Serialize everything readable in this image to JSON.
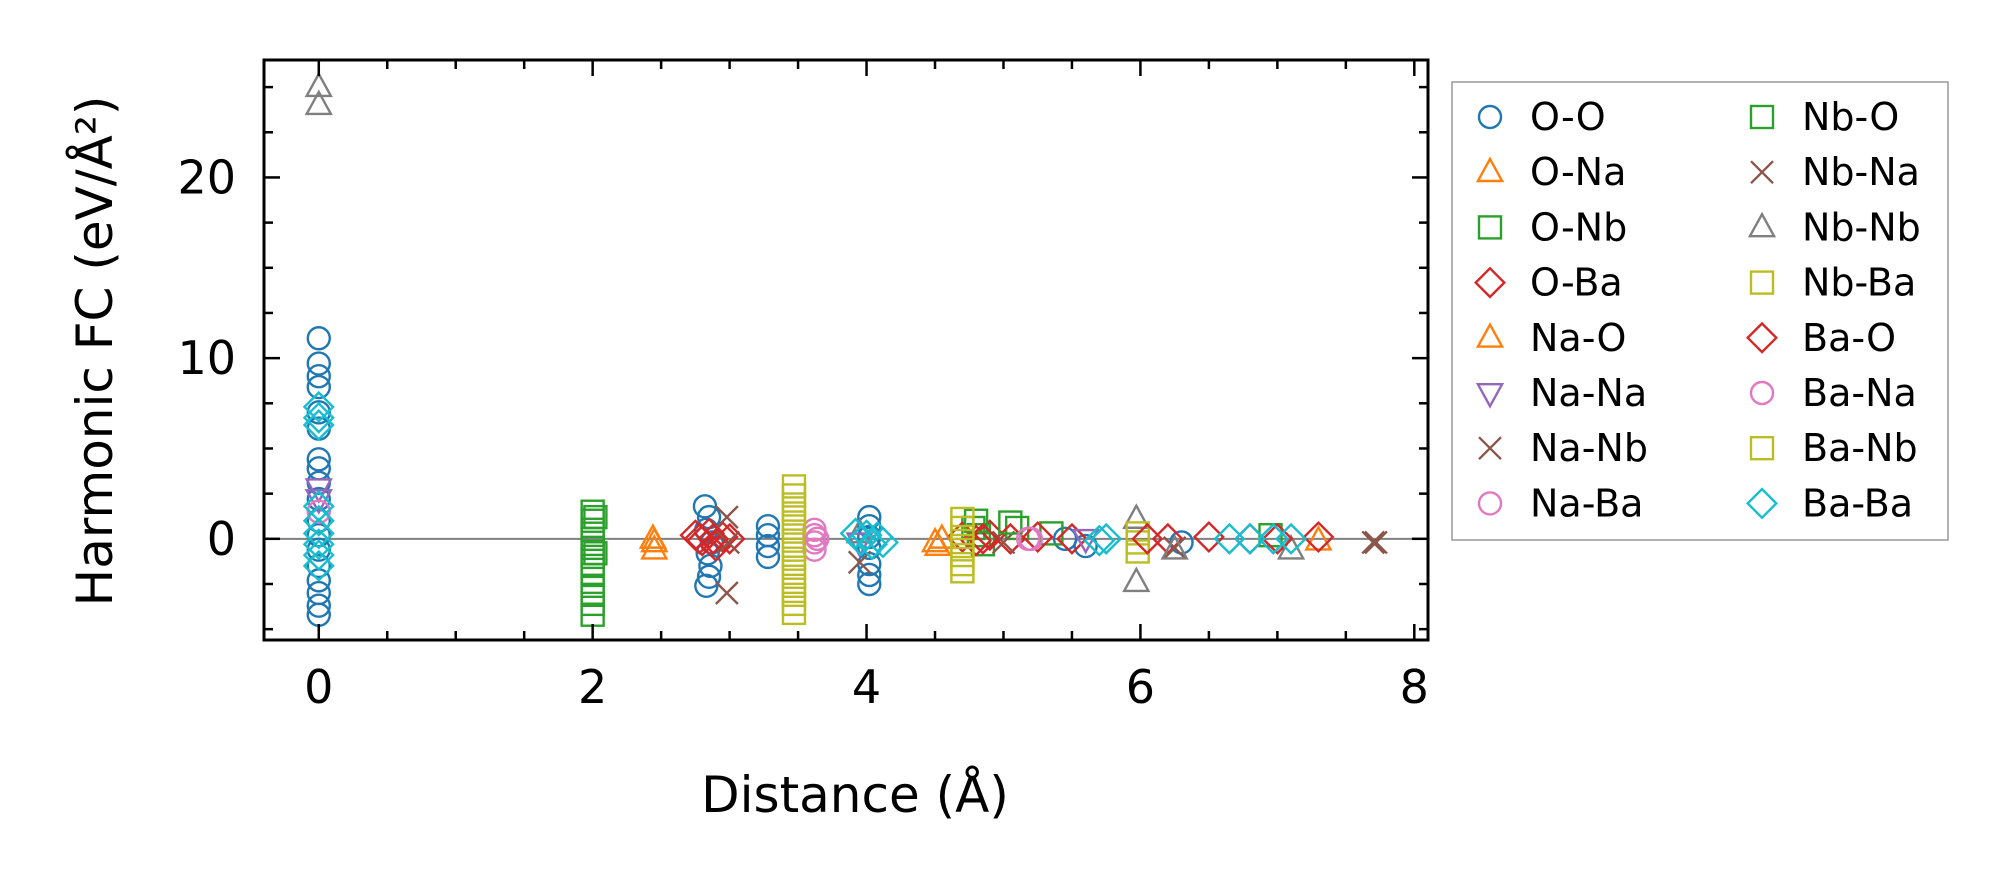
{
  "chart_data": {
    "type": "scatter",
    "xlabel": "Distance (Å)",
    "ylabel": "Harmonic FC (eV/Å²)",
    "xlim": [
      -0.4,
      8.1
    ],
    "ylim": [
      -5.6,
      26.5
    ],
    "xticks": [
      0,
      2,
      4,
      6,
      8
    ],
    "yticks": [
      0,
      10,
      20
    ],
    "x_tick_labels": [
      "0",
      "2",
      "4",
      "6",
      "8"
    ],
    "y_tick_labels": [
      "0",
      "10",
      "20"
    ],
    "legend_position": "outside-right",
    "reference_line_y": 0,
    "series": [
      {
        "name": "O-O",
        "marker": "circle",
        "color": "#1f77b4",
        "points": [
          [
            0,
            11.1
          ],
          [
            0,
            9.7
          ],
          [
            0,
            9.0
          ],
          [
            0,
            8.4
          ],
          [
            0,
            7.0
          ],
          [
            0,
            6.1
          ],
          [
            0,
            4.4
          ],
          [
            0,
            3.9
          ],
          [
            0,
            3.1
          ],
          [
            0,
            2.2
          ],
          [
            0,
            1.0
          ],
          [
            0,
            0.2
          ],
          [
            0,
            -0.6
          ],
          [
            0,
            -1.5
          ],
          [
            0,
            -2.3
          ],
          [
            0,
            -3.0
          ],
          [
            0,
            -3.7
          ],
          [
            0,
            -4.2
          ],
          [
            2.82,
            1.8
          ],
          [
            2.85,
            1.2
          ],
          [
            2.83,
            0.5
          ],
          [
            2.87,
            -0.2
          ],
          [
            2.84,
            -0.8
          ],
          [
            2.86,
            -1.5
          ],
          [
            2.85,
            -2.1
          ],
          [
            2.83,
            -2.6
          ],
          [
            3.28,
            0.7
          ],
          [
            3.28,
            0.2
          ],
          [
            3.28,
            -0.4
          ],
          [
            3.28,
            -1.0
          ],
          [
            4.02,
            1.2
          ],
          [
            4.02,
            0.7
          ],
          [
            4.02,
            0.1
          ],
          [
            4.02,
            -0.5
          ],
          [
            4.02,
            -1.4
          ],
          [
            4.02,
            -2.0
          ],
          [
            4.02,
            -2.5
          ],
          [
            5.45,
            0.0
          ],
          [
            5.6,
            -0.4
          ],
          [
            6.3,
            -0.2
          ]
        ]
      },
      {
        "name": "O-Na",
        "marker": "triangle-up",
        "color": "#ff7f0e",
        "points": [
          [
            2.45,
            -0.2
          ],
          [
            2.45,
            -0.6
          ],
          [
            4.5,
            -0.2
          ],
          [
            4.52,
            -0.4
          ],
          [
            7.3,
            -0.1
          ]
        ]
      },
      {
        "name": "O-Nb",
        "marker": "square",
        "color": "#2ca02c",
        "points": [
          [
            2.0,
            1.5
          ],
          [
            2.0,
            1.0
          ],
          [
            2.0,
            0.5
          ],
          [
            2.0,
            0.0
          ],
          [
            2.0,
            -0.5
          ],
          [
            2.0,
            -1.0
          ],
          [
            2.0,
            -1.5
          ],
          [
            2.0,
            -2.0
          ],
          [
            2.0,
            -2.6
          ],
          [
            2.0,
            -3.1
          ],
          [
            2.0,
            -3.6
          ],
          [
            2.0,
            -4.2
          ],
          [
            4.78,
            0.6
          ],
          [
            4.82,
            0.2
          ],
          [
            4.85,
            -0.3
          ],
          [
            5.1,
            0.6
          ],
          [
            5.35,
            0.3
          ],
          [
            6.95,
            0.2
          ]
        ]
      },
      {
        "name": "O-Ba",
        "marker": "diamond",
        "color": "#d62728",
        "points": [
          [
            2.75,
            0.2
          ],
          [
            2.8,
            -0.1
          ],
          [
            2.85,
            0.3
          ],
          [
            2.9,
            -0.4
          ],
          [
            2.95,
            0.1
          ],
          [
            3.0,
            0.0
          ],
          [
            4.7,
            0.1
          ],
          [
            4.8,
            -0.1
          ],
          [
            4.9,
            0.2
          ],
          [
            5.05,
            0.0
          ],
          [
            5.25,
            0.1
          ],
          [
            5.5,
            0.0
          ],
          [
            6.2,
            0.0
          ],
          [
            6.5,
            0.1
          ],
          [
            6.8,
            0.0
          ],
          [
            7.3,
            0.1
          ]
        ]
      },
      {
        "name": "Na-O",
        "marker": "triangle-up",
        "color": "#ff7f0e",
        "points": [
          [
            2.44,
            0.0
          ],
          [
            4.55,
            0.0
          ]
        ]
      },
      {
        "name": "Na-Na",
        "marker": "triangle-down",
        "color": "#9467bd",
        "points": [
          [
            0,
            2.8
          ],
          [
            0,
            2.2
          ],
          [
            3.95,
            -0.2
          ],
          [
            5.6,
            0.0
          ]
        ]
      },
      {
        "name": "Na-Nb",
        "marker": "x",
        "color": "#8c564b",
        "points": [
          [
            2.98,
            -3.0
          ],
          [
            2.98,
            1.2
          ],
          [
            3.95,
            -1.3
          ],
          [
            5.0,
            -0.2
          ],
          [
            6.25,
            -0.5
          ],
          [
            7.72,
            -0.2
          ]
        ]
      },
      {
        "name": "Na-Ba",
        "marker": "circle",
        "color": "#e377c2",
        "points": [
          [
            3.62,
            0.5
          ],
          [
            3.62,
            0.2
          ],
          [
            3.62,
            -0.2
          ],
          [
            3.62,
            -0.6
          ],
          [
            5.2,
            0.0
          ]
        ]
      },
      {
        "name": "Nb-O",
        "marker": "square",
        "color": "#2ca02c",
        "points": [
          [
            2.02,
            1.2
          ],
          [
            2.02,
            -0.8
          ],
          [
            4.8,
            1.0
          ],
          [
            5.05,
            0.9
          ]
        ]
      },
      {
        "name": "Nb-Na",
        "marker": "x",
        "color": "#8c564b",
        "points": [
          [
            2.99,
            -0.2
          ],
          [
            7.7,
            -0.2
          ]
        ]
      },
      {
        "name": "Nb-Nb",
        "marker": "triangle-up",
        "color": "#7f7f7f",
        "points": [
          [
            0,
            25.0
          ],
          [
            0,
            24.0
          ],
          [
            3.95,
            0.3
          ],
          [
            5.97,
            1.1
          ],
          [
            5.97,
            -2.4
          ],
          [
            6.25,
            -0.6
          ],
          [
            7.1,
            -0.6
          ]
        ]
      },
      {
        "name": "Nb-Ba",
        "marker": "square",
        "color": "#bcbd22",
        "points": [
          [
            3.47,
            2.9
          ],
          [
            3.47,
            2.4
          ],
          [
            3.47,
            1.9
          ],
          [
            3.47,
            1.4
          ],
          [
            3.47,
            0.9
          ],
          [
            3.47,
            0.4
          ],
          [
            3.47,
            -0.1
          ],
          [
            3.47,
            -0.6
          ],
          [
            3.47,
            -1.1
          ],
          [
            3.47,
            -1.6
          ],
          [
            3.47,
            -2.1
          ],
          [
            3.47,
            -2.6
          ],
          [
            3.47,
            -3.1
          ],
          [
            3.47,
            -3.6
          ],
          [
            3.47,
            -4.1
          ],
          [
            5.98,
            0.3
          ],
          [
            5.98,
            -0.2
          ],
          [
            5.98,
            -0.7
          ]
        ]
      },
      {
        "name": "Ba-O",
        "marker": "diamond",
        "color": "#d62728",
        "points": [
          [
            2.78,
            0.0
          ],
          [
            2.88,
            0.0
          ],
          [
            4.85,
            0.0
          ],
          [
            6.05,
            0.0
          ],
          [
            7.0,
            0.0
          ]
        ]
      },
      {
        "name": "Ba-Na",
        "marker": "circle",
        "color": "#e377c2",
        "points": [
          [
            0,
            1.5
          ],
          [
            3.64,
            0.0
          ],
          [
            5.18,
            0.0
          ]
        ]
      },
      {
        "name": "Ba-Nb",
        "marker": "square",
        "color": "#bcbd22",
        "points": [
          [
            4.7,
            1.1
          ],
          [
            4.7,
            0.6
          ],
          [
            4.7,
            0.1
          ],
          [
            4.7,
            -0.4
          ],
          [
            4.7,
            -0.9
          ],
          [
            4.7,
            -1.4
          ],
          [
            4.7,
            -1.8
          ]
        ]
      },
      {
        "name": "Ba-Ba",
        "marker": "diamond",
        "color": "#17becf",
        "points": [
          [
            0,
            7.3
          ],
          [
            0,
            6.7
          ],
          [
            0,
            6.3
          ],
          [
            0,
            1.8
          ],
          [
            0,
            1.0
          ],
          [
            0,
            0.3
          ],
          [
            0,
            -0.3
          ],
          [
            0,
            -0.9
          ],
          [
            0,
            -1.5
          ],
          [
            3.92,
            0.3
          ],
          [
            3.96,
            -0.1
          ],
          [
            4.0,
            0.2
          ],
          [
            4.04,
            -0.3
          ],
          [
            4.08,
            0.1
          ],
          [
            4.12,
            -0.2
          ],
          [
            5.7,
            -0.1
          ],
          [
            5.75,
            0.0
          ],
          [
            6.65,
            0.0
          ],
          [
            6.8,
            0.0
          ],
          [
            6.97,
            0.0
          ],
          [
            7.1,
            0.0
          ]
        ]
      }
    ]
  }
}
